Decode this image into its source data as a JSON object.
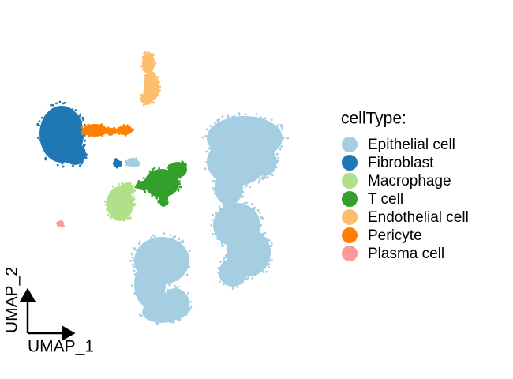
{
  "chart_data": {
    "type": "scatter",
    "legend_title": "cellType:",
    "xlabel": "UMAP_1",
    "ylabel": "UMAP_2",
    "series": [
      {
        "name": "Epithelial cell",
        "color": "#a6cee3"
      },
      {
        "name": "Fibroblast",
        "color": "#1f78b4"
      },
      {
        "name": "Macrophage",
        "color": "#b2df8a"
      },
      {
        "name": "T cell",
        "color": "#33a02c"
      },
      {
        "name": "Endothelial cell",
        "color": "#fdbf6f"
      },
      {
        "name": "Pericyte",
        "color": "#ff7f00"
      },
      {
        "name": "Plasma cell",
        "color": "#fb9a99"
      }
    ]
  }
}
